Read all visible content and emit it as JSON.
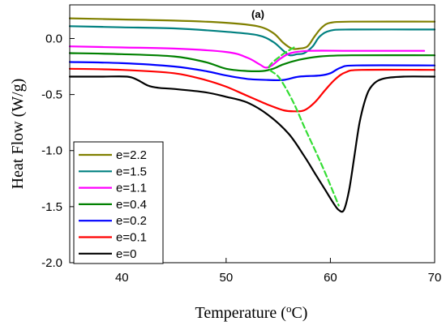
{
  "chart_data": {
    "type": "line",
    "panel_label": "(a)",
    "xlabel_prefix": "Temperature (",
    "xlabel_sup": "o",
    "xlabel_suffix": "C)",
    "ylabel": "Heat Flow (W/g)",
    "xlim": [
      35,
      70
    ],
    "ylim": [
      -2.0,
      0.3
    ],
    "x_ticks": [
      40,
      50,
      60,
      70
    ],
    "y_ticks": [
      -2.0,
      -1.5,
      -1.0,
      -0.5,
      0.0
    ],
    "y_tick_labels": [
      "-2.0",
      "-1.5",
      "-1.0",
      "-0.5",
      "0.0"
    ],
    "grid": false,
    "legend_position": "bottom-left",
    "series": [
      {
        "name": "e=2.2",
        "color": "#808000",
        "points": [
          [
            35,
            0.18
          ],
          [
            40,
            0.17
          ],
          [
            45,
            0.16
          ],
          [
            50,
            0.14
          ],
          [
            53,
            0.11
          ],
          [
            54.5,
            0.05
          ],
          [
            55.5,
            -0.04
          ],
          [
            56.3,
            -0.09
          ],
          [
            57,
            -0.09
          ],
          [
            57.8,
            -0.07
          ],
          [
            58.5,
            0.02
          ],
          [
            59.2,
            0.1
          ],
          [
            60,
            0.14
          ],
          [
            62,
            0.15
          ],
          [
            70,
            0.15
          ]
        ]
      },
      {
        "name": "e=1.5",
        "color": "#008080",
        "points": [
          [
            35,
            0.11
          ],
          [
            40,
            0.1
          ],
          [
            45,
            0.09
          ],
          [
            50,
            0.06
          ],
          [
            53,
            0.03
          ],
          [
            54.5,
            -0.03
          ],
          [
            55.5,
            -0.11
          ],
          [
            56.1,
            -0.15
          ],
          [
            56.8,
            -0.14
          ],
          [
            57.5,
            -0.13
          ],
          [
            58.3,
            -0.07
          ],
          [
            59,
            0.02
          ],
          [
            60,
            0.07
          ],
          [
            62,
            0.08
          ],
          [
            70,
            0.08
          ]
        ]
      },
      {
        "name": "e=1.1",
        "color": "#ff00ff",
        "points": [
          [
            35,
            -0.07
          ],
          [
            40,
            -0.08
          ],
          [
            45,
            -0.09
          ],
          [
            50,
            -0.12
          ],
          [
            52,
            -0.17
          ],
          [
            53.2,
            -0.23
          ],
          [
            53.8,
            -0.26
          ],
          [
            54.4,
            -0.24
          ],
          [
            55.2,
            -0.18
          ],
          [
            56.2,
            -0.13
          ],
          [
            58,
            -0.11
          ],
          [
            62,
            -0.11
          ],
          [
            69,
            -0.11
          ]
        ]
      },
      {
        "name": "e=0.4",
        "color": "#008000",
        "points": [
          [
            35,
            -0.13
          ],
          [
            40,
            -0.14
          ],
          [
            45,
            -0.16
          ],
          [
            48,
            -0.21
          ],
          [
            50,
            -0.27
          ],
          [
            52,
            -0.29
          ],
          [
            53.5,
            -0.29
          ],
          [
            54.5,
            -0.27
          ],
          [
            55.5,
            -0.23
          ],
          [
            57,
            -0.19
          ],
          [
            59,
            -0.16
          ],
          [
            62,
            -0.15
          ],
          [
            70,
            -0.15
          ]
        ]
      },
      {
        "name": "e=0.2",
        "color": "#0000ff",
        "points": [
          [
            35,
            -0.21
          ],
          [
            40,
            -0.22
          ],
          [
            45,
            -0.25
          ],
          [
            48,
            -0.29
          ],
          [
            50,
            -0.33
          ],
          [
            52,
            -0.36
          ],
          [
            54,
            -0.37
          ],
          [
            55.5,
            -0.37
          ],
          [
            57,
            -0.34
          ],
          [
            59,
            -0.33
          ],
          [
            60,
            -0.31
          ],
          [
            61,
            -0.26
          ],
          [
            62.5,
            -0.24
          ],
          [
            70,
            -0.24
          ]
        ]
      },
      {
        "name": "e=0.1",
        "color": "#ff0000",
        "points": [
          [
            35,
            -0.27
          ],
          [
            40,
            -0.28
          ],
          [
            45,
            -0.31
          ],
          [
            48,
            -0.37
          ],
          [
            50,
            -0.43
          ],
          [
            52,
            -0.51
          ],
          [
            54,
            -0.59
          ],
          [
            55.5,
            -0.64
          ],
          [
            56.5,
            -0.65
          ],
          [
            57.5,
            -0.64
          ],
          [
            58.5,
            -0.57
          ],
          [
            59.5,
            -0.46
          ],
          [
            60.5,
            -0.36
          ],
          [
            61.5,
            -0.3
          ],
          [
            63,
            -0.28
          ],
          [
            70,
            -0.28
          ]
        ]
      },
      {
        "name": "e=0",
        "color": "#000000",
        "points": [
          [
            35,
            -0.34
          ],
          [
            38,
            -0.34
          ],
          [
            40.5,
            -0.34
          ],
          [
            41.5,
            -0.37
          ],
          [
            42.5,
            -0.42
          ],
          [
            43.5,
            -0.44
          ],
          [
            45,
            -0.45
          ],
          [
            48,
            -0.48
          ],
          [
            50,
            -0.52
          ],
          [
            52,
            -0.57
          ],
          [
            54,
            -0.68
          ],
          [
            56,
            -0.85
          ],
          [
            57.5,
            -1.05
          ],
          [
            58.5,
            -1.2
          ],
          [
            59.5,
            -1.35
          ],
          [
            60.3,
            -1.47
          ],
          [
            60.8,
            -1.53
          ],
          [
            61.3,
            -1.53
          ],
          [
            61.8,
            -1.35
          ],
          [
            62.3,
            -1.05
          ],
          [
            62.8,
            -0.75
          ],
          [
            63.4,
            -0.53
          ],
          [
            64,
            -0.42
          ],
          [
            65,
            -0.36
          ],
          [
            67,
            -0.34
          ],
          [
            70,
            -0.34
          ]
        ]
      }
    ],
    "trend_line": {
      "color": "#33dd33",
      "points": [
        [
          56.5,
          -0.08
        ],
        [
          55.3,
          -0.15
        ],
        [
          54.1,
          -0.26
        ],
        [
          55.1,
          -0.35
        ],
        [
          56.4,
          -0.56
        ],
        [
          57.5,
          -0.79
        ],
        [
          58.6,
          -1.01
        ],
        [
          59.6,
          -1.22
        ],
        [
          60.8,
          -1.49
        ]
      ]
    }
  }
}
